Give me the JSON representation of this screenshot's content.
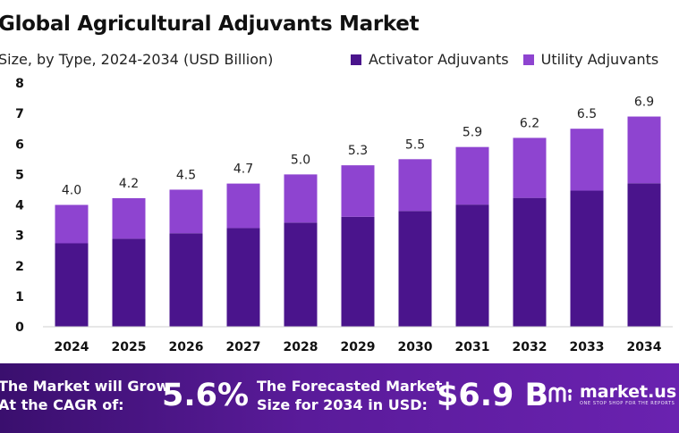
{
  "colors": {
    "activator": "#4a148c",
    "utility": "#8e44d0",
    "label": "#222222"
  },
  "chart_data": {
    "type": "bar",
    "stacked": true,
    "title": "Global Agricultural Adjuvants Market",
    "subtitle": "Size, by Type, 2024-2034 (USD Billion)",
    "categories": [
      "2024",
      "2025",
      "2026",
      "2027",
      "2028",
      "2029",
      "2030",
      "2031",
      "2032",
      "2033",
      "2034"
    ],
    "series": [
      {
        "name": "Activator Adjuvants",
        "values": [
          2.74,
          2.89,
          3.07,
          3.24,
          3.42,
          3.61,
          3.8,
          4.01,
          4.23,
          4.47,
          4.71
        ]
      },
      {
        "name": "Utility Adjuvants",
        "values": [
          1.26,
          1.33,
          1.43,
          1.46,
          1.58,
          1.69,
          1.7,
          1.89,
          1.97,
          2.03,
          2.19
        ]
      }
    ],
    "totals": [
      "4.0",
      "4.2",
      "4.5",
      "4.7",
      "5.0",
      "5.3",
      "5.5",
      "5.9",
      "6.2",
      "6.5",
      "6.9"
    ],
    "yticks": [
      0,
      1,
      2,
      3,
      4,
      5,
      6,
      7,
      8
    ],
    "ylim": [
      0,
      8
    ],
    "xlabel": "",
    "ylabel": "",
    "grid": false,
    "legend_position": "top-right"
  },
  "footer": {
    "cagr_label_line1": "The Market will Grow",
    "cagr_label_line2": "At the CAGR of:",
    "cagr_value": "5.6%",
    "forecast_label_line1": "The Forecasted Market",
    "forecast_label_line2": "Size for 2034 in USD:",
    "forecast_value": "$6.9 B",
    "brand": "market.us",
    "brand_tagline": "ONE STOP SHOP FOR THE REPORTS",
    "logo_icon": "market-us-logo-icon"
  }
}
